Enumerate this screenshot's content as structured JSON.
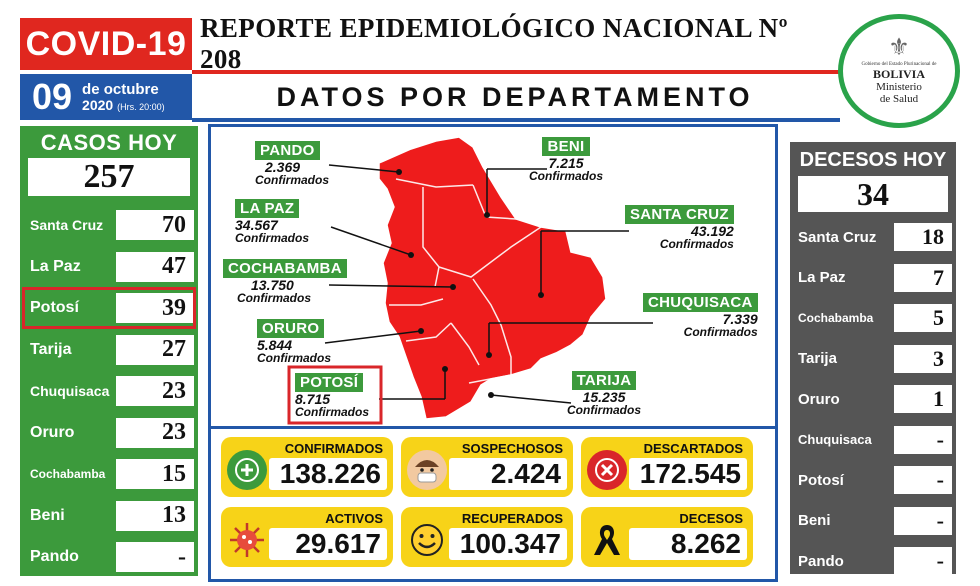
{
  "header": {
    "covid_label": "COVID-19",
    "report_title": "REPORTE EPIDEMIOLÓGICO NACIONAL Nº 208",
    "subtitle": "DATOS POR DEPARTAMENTO",
    "date_day": "09",
    "date_month": "de octubre",
    "date_year": "2020",
    "date_time": "(Hrs. 20:00)"
  },
  "logo": {
    "gov_text": "Gobierno del Estado Plurinacional de",
    "country": "BOLIVIA",
    "ministry_line1": "Ministerio",
    "ministry_line2": "de Salud"
  },
  "cases_today": {
    "title": "CASOS HOY",
    "total": "257",
    "rows": [
      {
        "name": "Santa Cruz",
        "value": "70"
      },
      {
        "name": "La Paz",
        "value": "47"
      },
      {
        "name": "Potosí",
        "value": "39"
      },
      {
        "name": "Tarija",
        "value": "27"
      },
      {
        "name": "Chuquisaca",
        "value": "23"
      },
      {
        "name": "Oruro",
        "value": "23"
      },
      {
        "name": "Cochabamba",
        "value": "15"
      },
      {
        "name": "Beni",
        "value": "13"
      },
      {
        "name": "Pando",
        "value": "-"
      }
    ]
  },
  "deaths_today": {
    "title": "DECESOS HOY",
    "total": "34",
    "rows": [
      {
        "name": "Santa Cruz",
        "value": "18"
      },
      {
        "name": "La Paz",
        "value": "7"
      },
      {
        "name": "Cochabamba",
        "value": "5"
      },
      {
        "name": "Tarija",
        "value": "3"
      },
      {
        "name": "Oruro",
        "value": "1"
      },
      {
        "name": "Chuquisaca",
        "value": "-"
      },
      {
        "name": "Potosí",
        "value": "-"
      },
      {
        "name": "Beni",
        "value": "-"
      },
      {
        "name": "Pando",
        "value": "-"
      }
    ]
  },
  "map": {
    "confirmed_label": "Confirmados",
    "departments": {
      "pando": {
        "name": "PANDO",
        "value": "2.369"
      },
      "beni": {
        "name": "BENI",
        "value": "7.215"
      },
      "lapaz": {
        "name": "LA PAZ",
        "value": "34.567"
      },
      "santacruz": {
        "name": "SANTA CRUZ",
        "value": "43.192"
      },
      "cochabamba": {
        "name": "COCHABAMBA",
        "value": "13.750"
      },
      "chuquisaca": {
        "name": "CHUQUISACA",
        "value": "7.339"
      },
      "oruro": {
        "name": "ORURO",
        "value": "5.844"
      },
      "potosi": {
        "name": "POTOSÍ",
        "value": "8.715"
      },
      "tarija": {
        "name": "TARIJA",
        "value": "15.235"
      }
    },
    "fill_color": "#ee1c1c"
  },
  "totals": {
    "confirmados": {
      "label": "CONFIRMADOS",
      "value": "138.226"
    },
    "sospechosos": {
      "label": "SOSPECHOSOS",
      "value": "2.424"
    },
    "descartados": {
      "label": "DESCARTADOS",
      "value": "172.545"
    },
    "activos": {
      "label": "ACTIVOS",
      "value": "29.617"
    },
    "recuperados": {
      "label": "RECUPERADOS",
      "value": "100.347"
    },
    "decesos": {
      "label": "DECESOS",
      "value": "8.262"
    }
  },
  "icons": {
    "confirmados": "plus-icon",
    "sospechosos": "masked-face-icon",
    "descartados": "x-circle-icon",
    "activos": "virus-icon",
    "recuperados": "smile-icon",
    "decesos": "mourning-ribbon-icon"
  }
}
